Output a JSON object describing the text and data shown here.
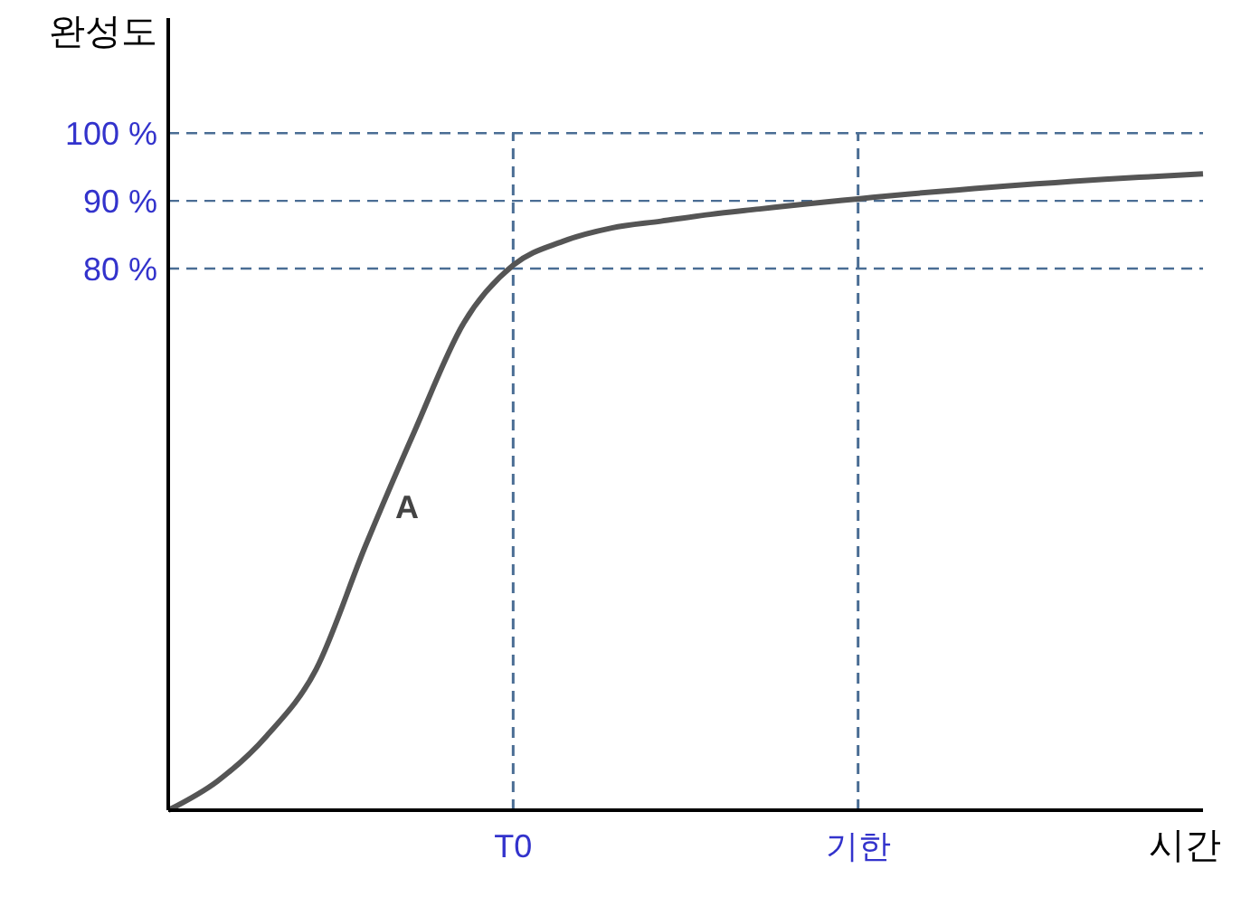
{
  "chart_data": {
    "type": "line",
    "xlabel": "시간",
    "ylabel": "완성도",
    "categories": [
      null,
      null,
      null,
      null,
      null,
      null,
      null,
      "T0",
      null,
      null,
      null,
      null,
      null,
      null,
      "기한",
      null,
      null,
      null,
      null,
      null,
      null,
      null
    ],
    "series": [
      {
        "color": "#555555",
        "values": [
          0,
          4.3,
          11,
          20.8,
          39,
          56,
          72,
          80.5,
          84,
          86,
          87,
          88,
          88.8,
          89.6,
          90.3,
          91,
          91.6,
          92.2,
          92.7,
          93.2,
          93.6,
          94
        ]
      }
    ],
    "ylim": [
      0,
      117
    ],
    "yticks": [
      {
        "value": 80,
        "label": "80 %"
      },
      {
        "value": 90,
        "label": "90 %"
      },
      {
        "value": 100,
        "label": "100 %"
      }
    ],
    "ref_lines": [
      {
        "axis": "y",
        "value": 100,
        "color": "#4a6d94",
        "line_style": "dashed"
      },
      {
        "axis": "y",
        "value": 90,
        "color": "#4a6d94",
        "line_style": "dashed"
      },
      {
        "axis": "y",
        "value": 80,
        "color": "#4a6d94",
        "line_style": "dashed"
      },
      {
        "axis": "x",
        "value": "T0",
        "color": "#4a6d94",
        "line_style": "dashed"
      },
      {
        "axis": "x",
        "value": "기한",
        "color": "#4a6d94",
        "line_style": "dashed"
      }
    ],
    "annotations": [
      "A"
    ],
    "grid": false,
    "marker": "none",
    "line_style": "solid"
  }
}
